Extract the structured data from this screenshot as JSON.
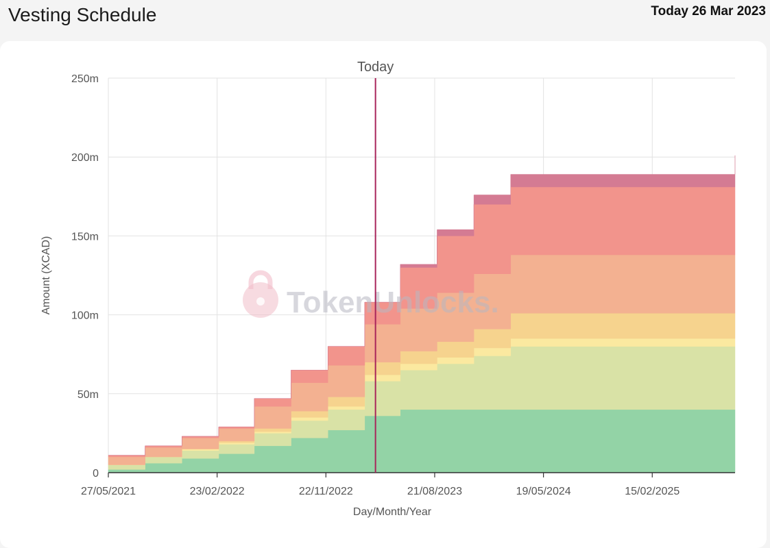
{
  "header": {
    "title": "Vesting Schedule",
    "today_label": "Today 26 Mar 2023"
  },
  "watermark": {
    "text": "TokenUnlocks."
  },
  "chart_data": {
    "type": "area",
    "stacked": true,
    "step": true,
    "title": "",
    "xlabel": "Day/Month/Year",
    "ylabel": "Amount (XCAD)",
    "ylim": [
      0,
      250000000
    ],
    "yticks": [
      0,
      50000000,
      100000000,
      150000000,
      200000000,
      250000000
    ],
    "ytick_labels": [
      "0",
      "50m",
      "100m",
      "150m",
      "200m",
      "250m"
    ],
    "xlim": [
      "2021-05-27",
      "2025-09-10"
    ],
    "xticks": [
      "2021-05-27",
      "2022-02-23",
      "2022-11-22",
      "2023-08-21",
      "2024-05-19",
      "2025-02-15"
    ],
    "xtick_labels": [
      "27/05/2021",
      "23/02/2022",
      "22/11/2022",
      "21/08/2023",
      "19/05/2024",
      "15/02/2025"
    ],
    "grid": true,
    "marker": {
      "label": "Today",
      "date": "2023-03-26",
      "color": "#a8245a"
    },
    "dates": [
      "2021-05-27",
      "2021-08-27",
      "2021-11-27",
      "2022-02-27",
      "2022-05-27",
      "2022-08-27",
      "2022-11-27",
      "2023-02-27",
      "2023-05-27",
      "2023-08-27",
      "2023-11-27",
      "2024-02-27",
      "2025-09-10"
    ],
    "series": [
      {
        "color": "#93d3a6",
        "values": [
          2,
          6,
          9,
          12,
          17,
          22,
          27,
          36,
          40,
          40,
          40,
          40,
          40
        ]
      },
      {
        "color": "#d9e2a6",
        "values": [
          3,
          4,
          5,
          6,
          8,
          11,
          13,
          22,
          25,
          29,
          34,
          40,
          40
        ]
      },
      {
        "color": "#fbe9a0",
        "values": [
          0,
          0,
          1,
          1,
          1,
          2,
          2,
          4,
          4,
          4,
          5,
          5,
          5
        ]
      },
      {
        "color": "#f6d38e",
        "values": [
          0,
          0,
          0,
          1,
          2,
          4,
          6,
          8,
          8,
          10,
          12,
          16,
          16
        ]
      },
      {
        "color": "#f3b191",
        "values": [
          5,
          6,
          7,
          8,
          14,
          18,
          20,
          24,
          27,
          31,
          35,
          37,
          37
        ]
      },
      {
        "color": "#f2948c",
        "values": [
          1,
          1,
          1,
          1,
          5,
          8,
          12,
          14,
          26,
          36,
          44,
          43,
          43
        ]
      },
      {
        "color": "#d47b93",
        "values": [
          0,
          0,
          0,
          0,
          0,
          0,
          0,
          0,
          2,
          4,
          6,
          8,
          20
        ]
      }
    ]
  }
}
